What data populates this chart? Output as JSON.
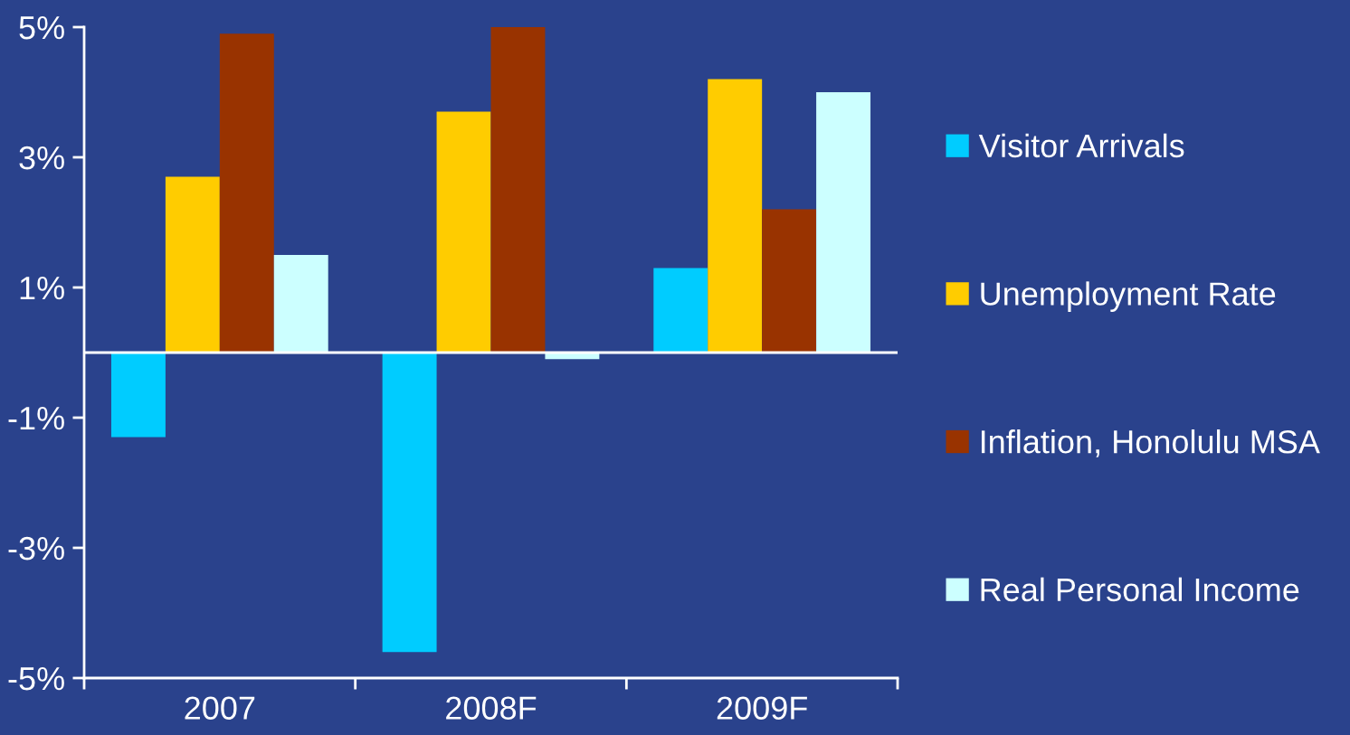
{
  "chart_data": {
    "type": "bar",
    "categories": [
      "2007",
      "2008F",
      "2009F"
    ],
    "series": [
      {
        "name": "Visitor Arrivals",
        "color": "#00ccff",
        "values": [
          -1.3,
          -4.6,
          1.3
        ]
      },
      {
        "name": "Unemployment Rate",
        "color": "#ffcc00",
        "values": [
          2.7,
          3.7,
          4.2
        ]
      },
      {
        "name": "Inflation, Honolulu MSA",
        "color": "#993300",
        "values": [
          4.9,
          5.0,
          2.2
        ]
      },
      {
        "name": "Real Personal Income",
        "color": "#ccffff",
        "values": [
          1.5,
          -0.1,
          4.0
        ]
      }
    ],
    "ylim": [
      -5,
      5
    ],
    "yticks": [
      {
        "value": 5,
        "label": "5%"
      },
      {
        "value": 3,
        "label": "3%"
      },
      {
        "value": 1,
        "label": "1%"
      },
      {
        "value": -1,
        "label": "-1%"
      },
      {
        "value": -3,
        "label": "-3%"
      },
      {
        "value": -5,
        "label": "-5%"
      }
    ],
    "grid": false,
    "legend": "right",
    "ref_lines": [
      {
        "axis": "y",
        "value": 0,
        "color": "#ffffff"
      }
    ]
  }
}
